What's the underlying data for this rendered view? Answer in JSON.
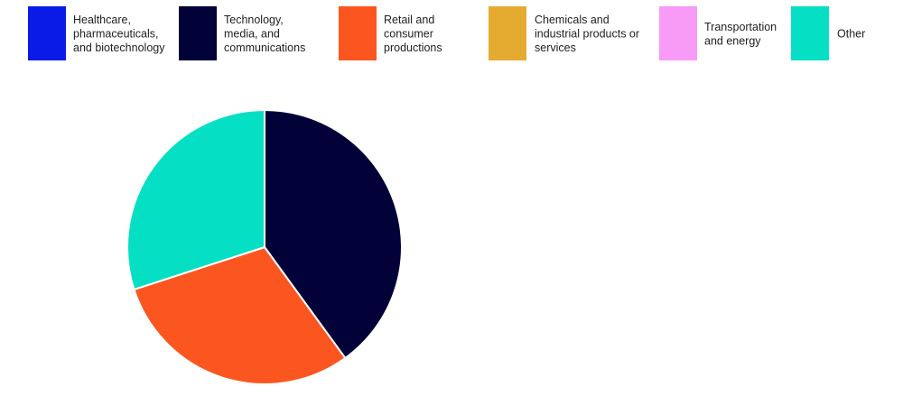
{
  "chart_data": {
    "type": "pie",
    "title": "",
    "legend_placement": "top",
    "series": [
      {
        "name": "Healthcare, pharmaceuticals, and biotechnology",
        "value": 0,
        "color": "#0a1be8"
      },
      {
        "name": "Technology, media, and communications",
        "value": 40,
        "color": "#020138"
      },
      {
        "name": "Retail and consumer productions",
        "value": 30,
        "color": "#fc5620"
      },
      {
        "name": "Chemicals and industrial products or services",
        "value": 0,
        "color": "#e5ab31"
      },
      {
        "name": "Transportation and energy",
        "value": 0,
        "color": "#f79bf7"
      },
      {
        "name": "Other",
        "value": 30,
        "color": "#05e0c4"
      }
    ]
  }
}
